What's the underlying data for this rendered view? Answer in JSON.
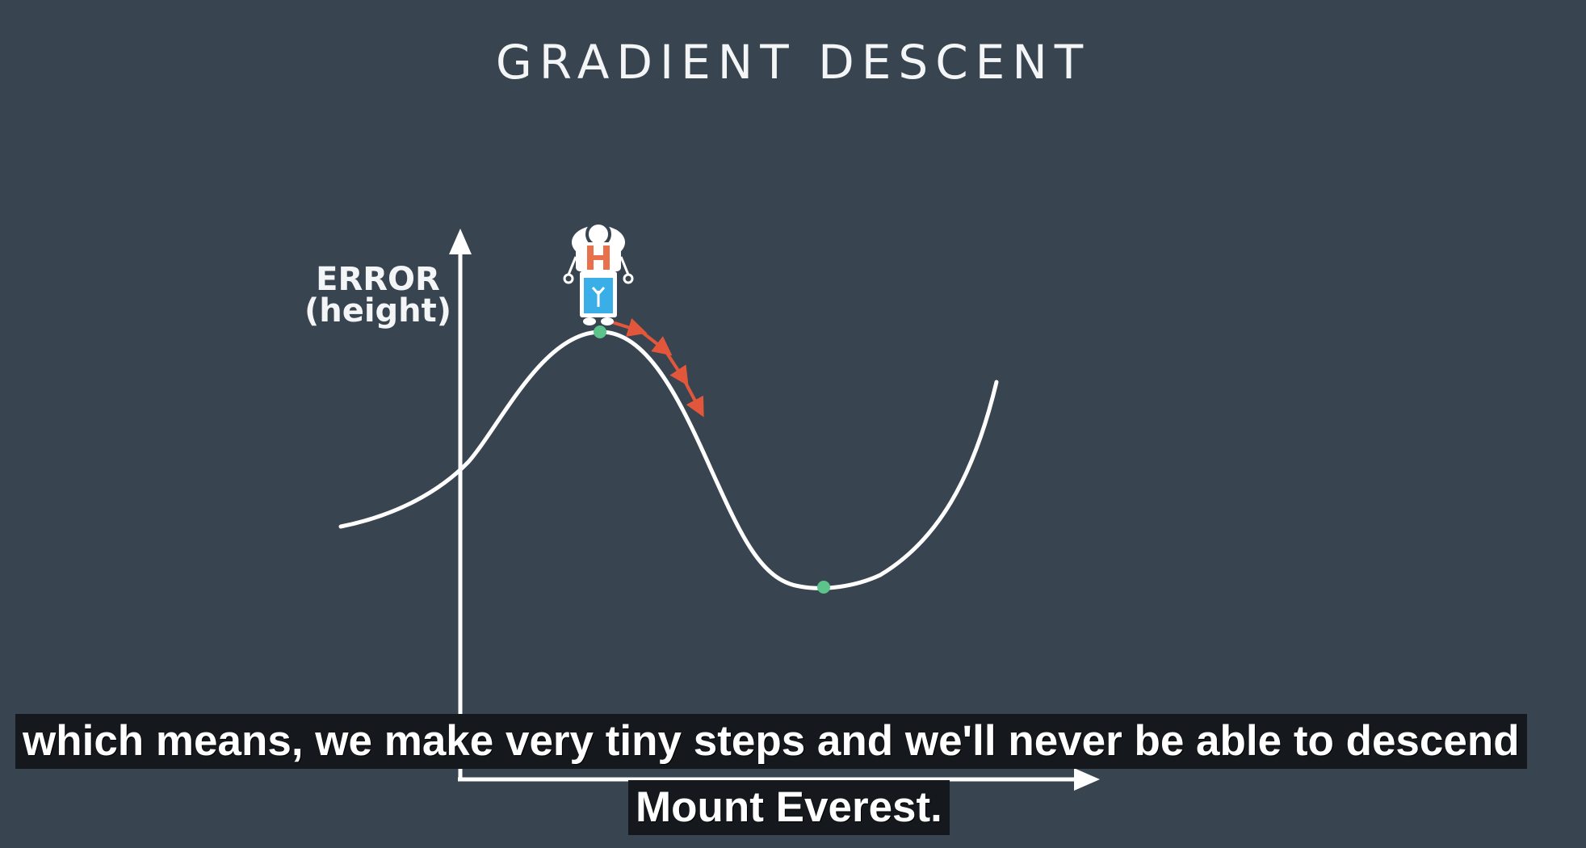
{
  "slide": {
    "title": "GRADIENT DESCENT",
    "y_axis_label_line1": "ERROR",
    "y_axis_label_line2": "(height)"
  },
  "colors": {
    "background": "#38444f",
    "curve": "#ffffff",
    "point": "#5cc48a",
    "arrow": "#e2573b",
    "robot_blue": "#3aaee6",
    "robot_orange": "#e8704a"
  },
  "icons": {
    "character": "robot-hiker-icon",
    "step_arrows": "arrow-down-right-icon"
  },
  "subtitles": {
    "line1": "which means, we make very tiny steps and we'll never be able to descend",
    "line2": "Mount Everest."
  }
}
